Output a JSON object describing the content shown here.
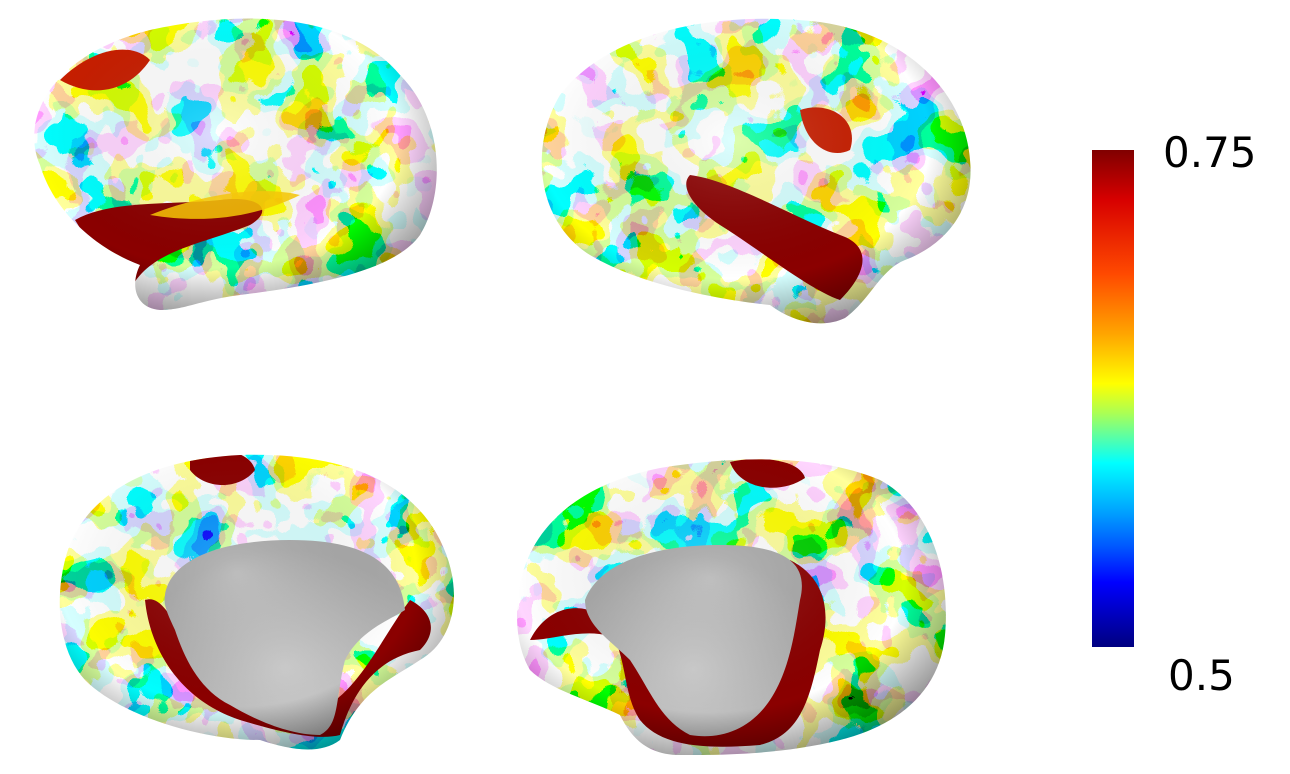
{
  "figure": {
    "panels": [
      {
        "id": "left-lateral",
        "hemisphere": "left",
        "view": "lateral"
      },
      {
        "id": "right-lateral",
        "hemisphere": "right",
        "view": "lateral"
      },
      {
        "id": "left-medial",
        "hemisphere": "left",
        "view": "medial"
      },
      {
        "id": "right-medial",
        "hemisphere": "right",
        "view": "medial"
      }
    ],
    "colormap": "jet",
    "colorbar": {
      "max_label": "0.75",
      "min_label": "0.5",
      "max": 0.75,
      "min": 0.5
    },
    "colors": {
      "medial_wall": "#b5b5b5",
      "low": "#000080",
      "high": "#800000"
    }
  }
}
